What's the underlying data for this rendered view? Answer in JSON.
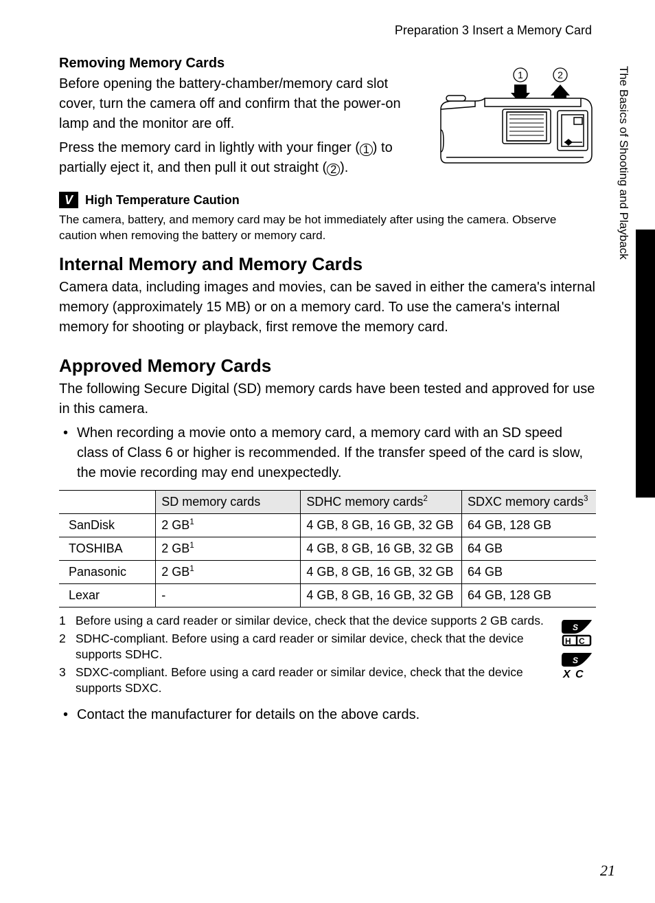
{
  "breadcrumb": "Preparation 3 Insert a Memory Card",
  "side_section_label": "The Basics of Shooting and Playback",
  "page_number": "21",
  "removing": {
    "heading": "Removing Memory Cards",
    "para1": "Before opening the battery-chamber/memory card slot cover, turn the camera off and confirm that the power-on lamp and the monitor are off.",
    "para2_a": "Press the memory card in lightly with your finger (",
    "para2_b": ") to partially eject it, and then pull it out straight (",
    "para2_c": ").",
    "step1": "1",
    "step2": "2",
    "diagram_label_1": "1",
    "diagram_label_2": "2"
  },
  "caution": {
    "icon_glyph": "V",
    "title": "High Temperature Caution",
    "body": "The camera, battery, and memory card may be hot immediately after using the camera. Observe caution when removing the battery or memory card."
  },
  "internal": {
    "heading": "Internal Memory and Memory Cards",
    "body": "Camera data, including images and movies, can be saved in either the camera's internal memory (approximately 15 MB) or on a memory card. To use the camera's internal memory for shooting or playback, first remove the memory card."
  },
  "approved": {
    "heading": "Approved Memory Cards",
    "intro": "The following Secure Digital (SD) memory cards have been tested and approved for use in this camera.",
    "bullet1": "When recording a movie onto a memory card, a memory card with an SD speed class of Class 6 or higher is recommended. If the transfer speed of the card is slow, the movie recording may end unexpectedly.",
    "table": {
      "col_widths_pct": [
        18,
        27,
        30,
        25
      ],
      "header_bg": "#e7e7e7",
      "columns": {
        "brand": "",
        "sd_label": "SD memory cards",
        "sdhc_label": "SDHC memory cards",
        "sdhc_sup": "2",
        "sdxc_label": "SDXC memory cards",
        "sdxc_sup": "3"
      },
      "rows": [
        {
          "brand": "SanDisk",
          "sd": "2 GB",
          "sd_sup": "1",
          "sdhc": "4 GB, 8 GB, 16 GB, 32 GB",
          "sdxc": "64 GB, 128 GB"
        },
        {
          "brand": "TOSHIBA",
          "sd": "2 GB",
          "sd_sup": "1",
          "sdhc": "4 GB, 8 GB, 16 GB, 32 GB",
          "sdxc": "64 GB"
        },
        {
          "brand": "Panasonic",
          "sd": "2 GB",
          "sd_sup": "1",
          "sdhc": "4 GB, 8 GB, 16 GB, 32 GB",
          "sdxc": "64 GB"
        },
        {
          "brand": "Lexar",
          "sd": "-",
          "sd_sup": "",
          "sdhc": "4 GB, 8 GB, 16 GB, 32 GB",
          "sdxc": "64 GB, 128 GB"
        }
      ]
    },
    "footnotes": [
      {
        "n": "1",
        "text": "Before using a card reader or similar device, check that the device supports 2 GB cards."
      },
      {
        "n": "2",
        "text": "SDHC-compliant. Before using a card reader or similar device, check that the device supports SDHC."
      },
      {
        "n": "3",
        "text": "SDXC-compliant. Before using a card reader or similar device, check that the device supports SDXC."
      }
    ],
    "bullet2": "Contact the manufacturer for details on the above cards."
  }
}
